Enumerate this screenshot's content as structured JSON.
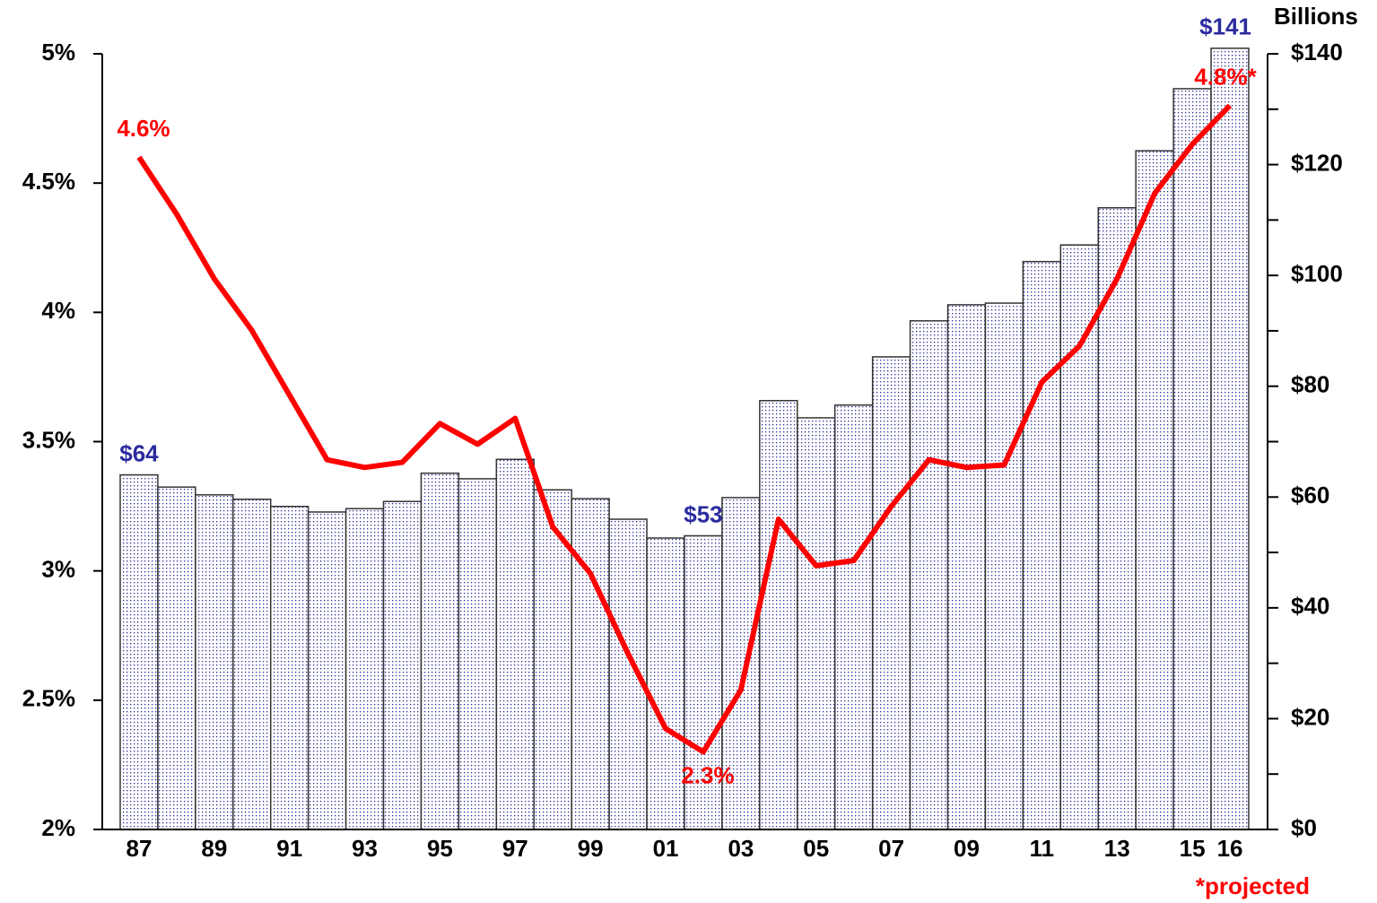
{
  "chart_data": {
    "type": "bar",
    "categories": [
      "87",
      null,
      "89",
      null,
      "91",
      null,
      "93",
      null,
      "95",
      null,
      "97",
      null,
      "99",
      null,
      "01",
      null,
      "03",
      null,
      "05",
      null,
      "07",
      null,
      "09",
      null,
      "11",
      null,
      "13",
      null,
      "15",
      "16"
    ],
    "series": [
      {
        "type": "bar",
        "axis": "y2",
        "color": "#2b2b9e",
        "values": [
          64,
          61.8,
          60.4,
          59.6,
          58.3,
          57.3,
          57.9,
          59.2,
          64.3,
          63.3,
          66.8,
          61.3,
          59.7,
          56.0,
          52.6,
          53,
          59.9,
          77.4,
          74.3,
          76.6,
          85.3,
          91.8,
          94.7,
          95.0,
          102.5,
          105.5,
          112.2,
          122.5,
          133.7,
          141
        ],
        "value_labels": [
          "$64",
          null,
          null,
          null,
          null,
          null,
          null,
          null,
          null,
          null,
          null,
          null,
          null,
          null,
          null,
          "$53",
          null,
          null,
          null,
          null,
          null,
          null,
          null,
          null,
          null,
          null,
          null,
          null,
          null,
          "$141"
        ]
      },
      {
        "type": "line",
        "color": "#ff0000",
        "values": [
          4.6,
          4.38,
          4.13,
          3.93,
          3.68,
          3.43,
          3.4,
          3.42,
          3.57,
          3.49,
          3.59,
          3.17,
          2.99,
          2.68,
          2.39,
          2.3,
          2.54,
          3.2,
          3.02,
          3.04,
          3.25,
          3.43,
          3.4,
          3.41,
          3.73,
          3.87,
          4.13,
          4.46,
          4.65,
          4.8
        ],
        "value_labels": [
          "4.6%",
          null,
          null,
          null,
          null,
          null,
          null,
          null,
          null,
          null,
          null,
          null,
          null,
          null,
          null,
          "2.3%",
          null,
          null,
          null,
          null,
          null,
          null,
          null,
          null,
          null,
          null,
          null,
          null,
          null,
          "4.8%*"
        ]
      }
    ],
    "ylim": [
      2,
      5
    ],
    "yticks": [
      {
        "value": 2,
        "label": "2%"
      },
      {
        "value": 2.5,
        "label": "2.5%"
      },
      {
        "value": 3,
        "label": "3%"
      },
      {
        "value": 3.5,
        "label": "3.5%"
      },
      {
        "value": 4,
        "label": "4%"
      },
      {
        "value": 4.5,
        "label": "4.5%"
      },
      {
        "value": 5,
        "label": "5%"
      }
    ],
    "y2lim": [
      0,
      140
    ],
    "y2ticks": [
      {
        "value": 0,
        "label": "$0"
      },
      {
        "value": 20,
        "label": "$20"
      },
      {
        "value": 40,
        "label": "$40"
      },
      {
        "value": 60,
        "label": "$60"
      },
      {
        "value": 80,
        "label": "$80"
      },
      {
        "value": 100,
        "label": "$100"
      },
      {
        "value": 120,
        "label": "$120"
      },
      {
        "value": 140,
        "label": "$140"
      }
    ],
    "y2_label": "Billions",
    "footnote": "*projected",
    "grid": false
  }
}
